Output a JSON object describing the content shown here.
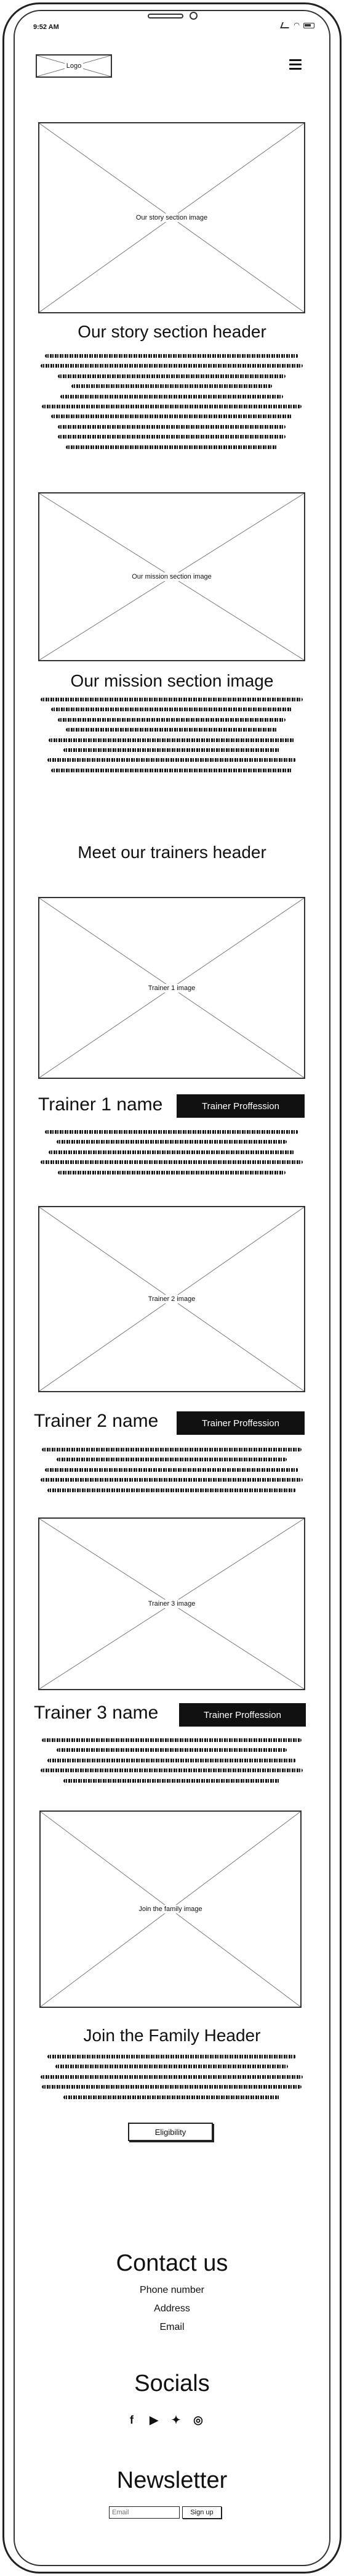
{
  "status_bar": {
    "time": "‪9:52 AM"
  },
  "header": {
    "logo_label": "Logo",
    "menu_icon": "hamburger-icon"
  },
  "story": {
    "image_label": "Our story section image",
    "heading": "Our story section header"
  },
  "mission": {
    "image_label": "Our mission section image",
    "heading": "Our mission section image"
  },
  "trainers": {
    "heading": "Meet our trainers header",
    "items": [
      {
        "image_label": "Trainer 1 image",
        "name": "Trainer 1 name",
        "profession": "Trainer Proffession"
      },
      {
        "image_label": "Trainer 2 image",
        "name": "Trainer 2 name",
        "profession": "Trainer Proffession"
      },
      {
        "image_label": "Trainer 3 image",
        "name": "Trainer 3 name",
        "profession": "Trainer Proffession"
      }
    ]
  },
  "family": {
    "image_label": "Join the family image",
    "heading": "Join the Family Header",
    "button_label": "Eligibility"
  },
  "contact": {
    "heading": "Contact us",
    "phone": "Phone number",
    "address": "Address",
    "email": "Email"
  },
  "socials": {
    "heading": "Socials",
    "icons": [
      "facebook-icon",
      "youtube-icon",
      "twitter-icon",
      "instagram-icon"
    ]
  },
  "newsletter": {
    "heading": "Newsletter",
    "email_placeholder": "Email",
    "signup_label": "Sign up"
  }
}
